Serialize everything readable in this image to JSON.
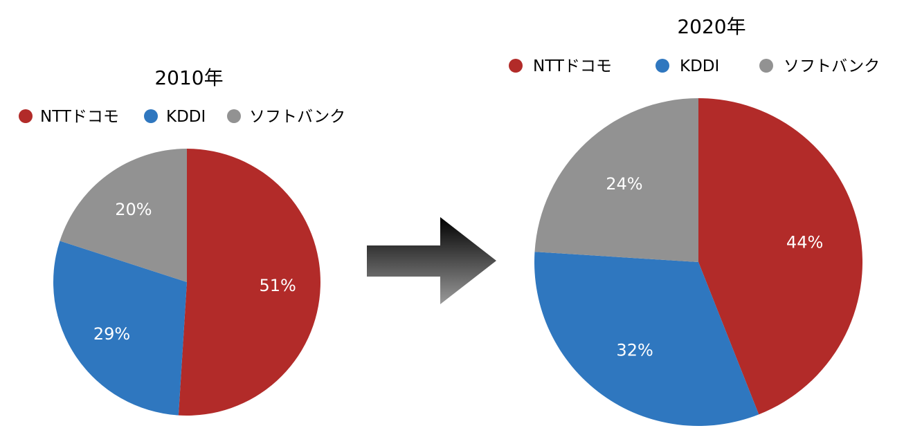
{
  "chart_data": [
    {
      "type": "pie",
      "title": "2010年",
      "categories": [
        "NTTドコモ",
        "KDDI",
        "ソフトバンク"
      ],
      "values": [
        51,
        29,
        20
      ],
      "labels": [
        "51%",
        "29%",
        "20%"
      ],
      "legend": "top",
      "colors": [
        "#b22b29",
        "#2f77bf",
        "#929292"
      ]
    },
    {
      "type": "pie",
      "title": "2020年",
      "categories": [
        "NTTドコモ",
        "KDDI",
        "ソフトバンク"
      ],
      "values": [
        44,
        32,
        24
      ],
      "labels": [
        "44%",
        "32%",
        "24%"
      ],
      "legend": "top",
      "colors": [
        "#b22b29",
        "#2f77bf",
        "#929292"
      ]
    }
  ]
}
